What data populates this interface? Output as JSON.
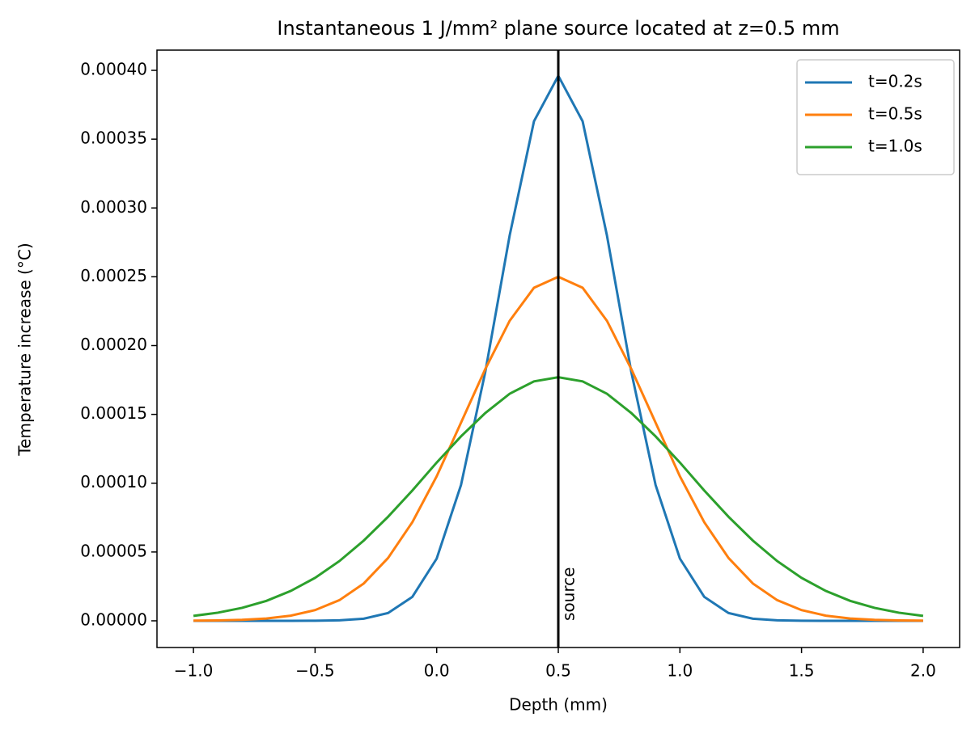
{
  "chart_data": {
    "type": "line",
    "title": "Instantaneous 1 J/mm² plane source located at z=0.5 mm",
    "xlabel": "Depth (mm)",
    "ylabel": "Temperature increase (°C)",
    "x": [
      -1,
      -0.9,
      -0.8,
      -0.7,
      -0.6,
      -0.5,
      -0.4,
      -0.3,
      -0.2,
      -0.1,
      0,
      0.1,
      0.2,
      0.3,
      0.4,
      0.5,
      0.6,
      0.7,
      0.8,
      0.9,
      1,
      1.1,
      1.2,
      1.3,
      1.4,
      1.5,
      1.6,
      1.7,
      1.8,
      1.9,
      2
    ],
    "series": [
      {
        "name": "t=0.2s",
        "color": "#1f77b4",
        "values": [
          0,
          0,
          0,
          0,
          0,
          7e-08,
          3.5e-07,
          1.53e-06,
          5.63e-06,
          1.74e-05,
          4.52e-05,
          9.87e-05,
          0.000181,
          0.00028,
          0.000363,
          0.000396,
          0.000363,
          0.00028,
          0.000181,
          9.87e-05,
          4.52e-05,
          1.74e-05,
          5.63e-06,
          1.53e-06,
          3.5e-07,
          7e-08,
          0,
          0,
          0,
          0,
          0
        ]
      },
      {
        "name": "t=0.5s",
        "color": "#ff7f0e",
        "values": [
          1e-07,
          2.8e-07,
          7.1e-07,
          1.68e-06,
          3.75e-06,
          7.77e-06,
          1.5e-05,
          2.71e-05,
          4.56e-05,
          7.17e-05,
          0.000105,
          0.000144,
          0.000183,
          0.000218,
          0.000242,
          0.00025,
          0.000242,
          0.000218,
          0.000183,
          0.000144,
          0.000105,
          7.17e-05,
          4.56e-05,
          2.71e-05,
          1.5e-05,
          7.77e-06,
          3.75e-06,
          1.68e-06,
          7.1e-07,
          2.8e-07,
          1e-07
        ]
      },
      {
        "name": "t=1.0s",
        "color": "#2ca02c",
        "values": [
          3.56e-06,
          5.9e-06,
          9.41e-06,
          1.45e-05,
          2.17e-05,
          3.12e-05,
          4.34e-05,
          5.83e-05,
          7.56e-05,
          9.47e-05,
          0.000115,
          0.000134,
          0.000151,
          0.000165,
          0.000174,
          0.000177,
          0.000174,
          0.000165,
          0.000151,
          0.000134,
          0.000115,
          9.47e-05,
          7.56e-05,
          5.83e-05,
          4.34e-05,
          3.12e-05,
          2.17e-05,
          1.45e-05,
          9.41e-06,
          5.9e-06,
          3.56e-06
        ]
      }
    ],
    "vline": {
      "x": 0.5,
      "label": "source",
      "color": "#000000"
    },
    "xlim": [
      -1.15,
      2.15
    ],
    "ylim": [
      -1.94e-05,
      0.0004147
    ],
    "xticks": [
      {
        "value": -1,
        "label": "−1.0"
      },
      {
        "value": -0.5,
        "label": "−0.5"
      },
      {
        "value": 0,
        "label": "0.0"
      },
      0.5,
      {
        "value": 1,
        "label": "1.0"
      },
      1.5,
      {
        "value": 2,
        "label": "2.0"
      }
    ],
    "yticks": [
      {
        "value": 0,
        "label": "0.00000"
      },
      {
        "value": 5e-05,
        "label": "0.00005"
      },
      {
        "value": 0.0001,
        "label": "0.00010"
      },
      {
        "value": 0.00015,
        "label": "0.00015"
      },
      {
        "value": 0.0002,
        "label": "0.00020"
      },
      {
        "value": 0.00025,
        "label": "0.00025"
      },
      {
        "value": 0.0003,
        "label": "0.00030"
      },
      {
        "value": 0.00035,
        "label": "0.00035"
      },
      {
        "value": 0.0004,
        "label": "0.00040"
      }
    ],
    "legend": "upper right",
    "grid": false
  }
}
